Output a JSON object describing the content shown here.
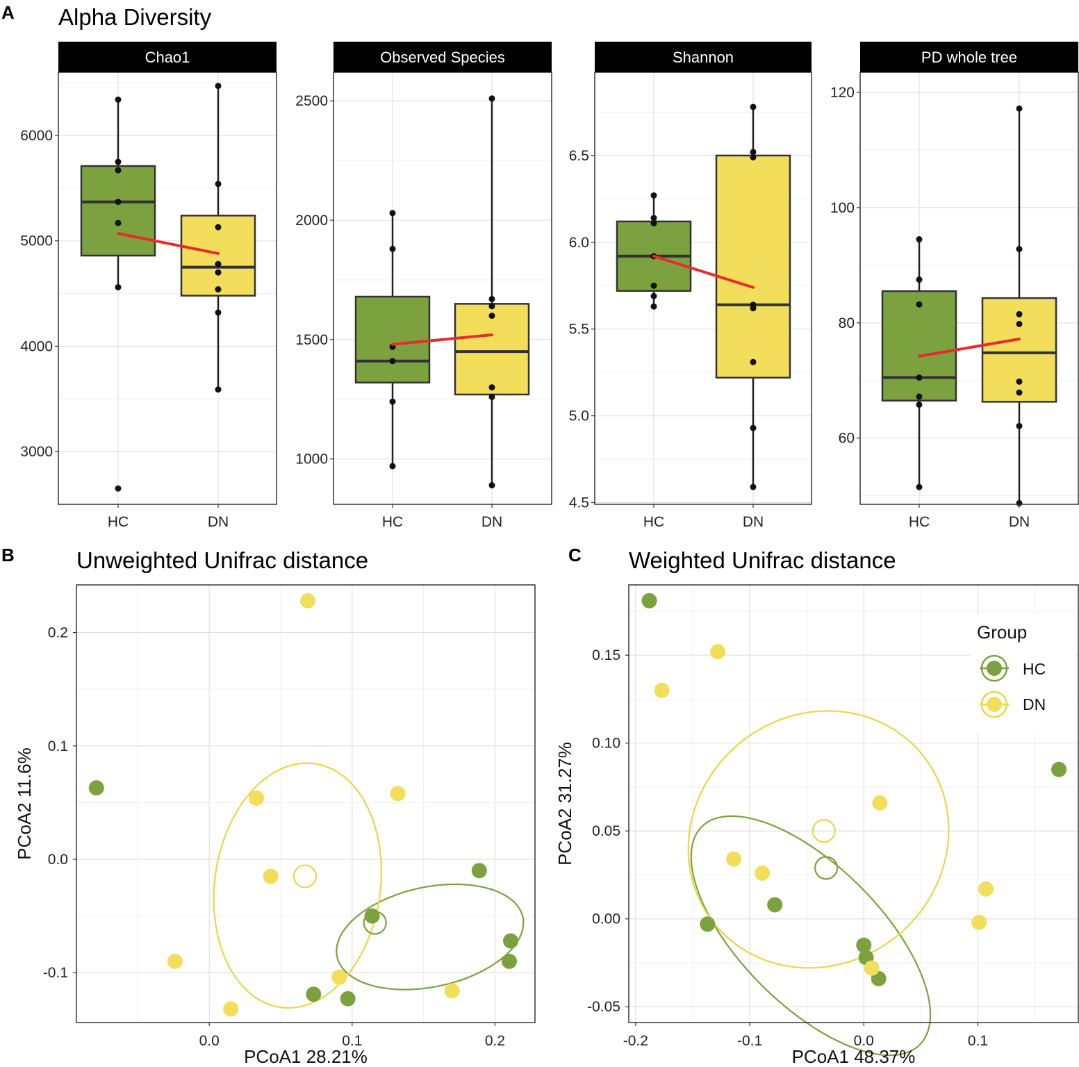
{
  "panel_labels": {
    "a": "A",
    "b": "B",
    "c": "C"
  },
  "colors": {
    "hc": "#7ba23f",
    "dn": "#f2de5a",
    "dn_line": "#ecd542",
    "mean_line": "#e82c2c",
    "strip_bg": "#000000",
    "grid": "#e1e1e1",
    "border": "#333333"
  },
  "chart_data": [
    {
      "type": "box",
      "title": "Alpha Diversity",
      "categories": [
        "HC",
        "DN"
      ],
      "facets": [
        {
          "name": "Chao1",
          "ylim": [
            2500,
            6600
          ],
          "yticks": [
            3000,
            4000,
            5000,
            6000
          ],
          "tick_labels": [
            "3000",
            "4000",
            "5000",
            "6000"
          ],
          "boxes": [
            {
              "group": "HC",
              "q1": 4860,
              "median": 5370,
              "q3": 5710,
              "whisker_low": 4560,
              "whisker_high": 6340,
              "mean": 5070
            },
            {
              "group": "DN",
              "q1": 4480,
              "median": 4750,
              "q3": 5240,
              "whisker_low": 3590,
              "whisker_high": 6470,
              "mean": 4880
            }
          ],
          "points": [
            {
              "group": "HC",
              "values": [
                6340,
                5750,
                5670,
                5370,
                5170,
                4560,
                2650
              ]
            },
            {
              "group": "DN",
              "values": [
                6470,
                5540,
                5130,
                4780,
                4700,
                4540,
                4320,
                3590
              ]
            }
          ]
        },
        {
          "name": "Observed Species",
          "ylim": [
            810,
            2620
          ],
          "yticks": [
            1000,
            1500,
            2000,
            2500
          ],
          "tick_labels": [
            "1000",
            "1500",
            "2000",
            "2500"
          ],
          "boxes": [
            {
              "group": "HC",
              "q1": 1320,
              "median": 1410,
              "q3": 1680,
              "whisker_low": 970,
              "whisker_high": 2030,
              "mean": 1480
            },
            {
              "group": "DN",
              "q1": 1270,
              "median": 1450,
              "q3": 1650,
              "whisker_low": 890,
              "whisker_high": 2510,
              "mean": 1520
            }
          ],
          "points": [
            {
              "group": "HC",
              "values": [
                2030,
                1880,
                1470,
                1410,
                1240,
                970
              ]
            },
            {
              "group": "DN",
              "values": [
                2510,
                1670,
                1640,
                1600,
                1300,
                1260,
                890
              ]
            }
          ]
        },
        {
          "name": "Shannon",
          "ylim": [
            4.49,
            6.98
          ],
          "yticks": [
            4.5,
            5.0,
            5.5,
            6.0,
            6.5
          ],
          "tick_labels": [
            "4.5",
            "5.0",
            "5.5",
            "6.0",
            "6.5"
          ],
          "boxes": [
            {
              "group": "HC",
              "q1": 5.72,
              "median": 5.92,
              "q3": 6.12,
              "whisker_low": 5.63,
              "whisker_high": 6.27,
              "mean": 5.92
            },
            {
              "group": "DN",
              "q1": 5.22,
              "median": 5.64,
              "q3": 6.5,
              "whisker_low": 4.59,
              "whisker_high": 6.78,
              "mean": 5.74
            }
          ],
          "points": [
            {
              "group": "HC",
              "values": [
                6.27,
                6.14,
                6.11,
                5.92,
                5.75,
                5.69,
                5.63
              ]
            },
            {
              "group": "DN",
              "values": [
                6.78,
                6.52,
                6.49,
                5.64,
                5.62,
                5.31,
                4.93,
                4.59
              ]
            }
          ]
        },
        {
          "name": "PD whole tree",
          "ylim": [
            48.5,
            123.5
          ],
          "yticks": [
            60,
            80,
            100,
            120
          ],
          "tick_labels": [
            "60",
            "80",
            "100",
            "120"
          ],
          "boxes": [
            {
              "group": "HC",
              "q1": 66.5,
              "median": 70.5,
              "q3": 85.5,
              "whisker_low": 51.5,
              "whisker_high": 94.5,
              "mean": 74.2
            },
            {
              "group": "DN",
              "q1": 66.3,
              "median": 74.8,
              "q3": 84.3,
              "whisker_low": 48.7,
              "whisker_high": 117.2,
              "mean": 77.2
            }
          ],
          "points": [
            {
              "group": "HC",
              "values": [
                94.5,
                87.5,
                83.2,
                70.5,
                67.2,
                65.8,
                51.5
              ]
            },
            {
              "group": "DN",
              "values": [
                117.2,
                92.8,
                81.5,
                79.8,
                69.8,
                67.9,
                62.1,
                48.7
              ]
            }
          ]
        }
      ]
    },
    {
      "type": "scatter",
      "title": "Unweighted Unifrac distance",
      "xlabel": "PCoA1 28.21%",
      "ylabel": "PCoA2 11.6%",
      "xlim": [
        -0.093,
        0.228
      ],
      "ylim": [
        -0.144,
        0.242
      ],
      "xticks": [
        0.0,
        0.1,
        0.2
      ],
      "xtick_labels": [
        "0.0",
        "0.1",
        "0.2"
      ],
      "yticks": [
        -0.1,
        0.0,
        0.1,
        0.2
      ],
      "ytick_labels": [
        "-0.1",
        "0.0",
        "0.1",
        "0.2"
      ],
      "series": [
        {
          "name": "HC",
          "color_key": "hc",
          "points": [
            [
              -0.079,
              0.063
            ],
            [
              0.189,
              -0.01
            ],
            [
              0.114,
              -0.05
            ],
            [
              0.211,
              -0.072
            ],
            [
              0.21,
              -0.09
            ],
            [
              0.073,
              -0.119
            ],
            [
              0.097,
              -0.123
            ]
          ],
          "centroid": [
            0.116,
            -0.056
          ],
          "ellipse": {
            "cx": 0.1545,
            "cy": -0.0685,
            "rx": 0.0665,
            "ry": 0.044,
            "angle_deg": 12
          }
        },
        {
          "name": "DN",
          "color_key": "dn",
          "points": [
            [
              0.069,
              0.228
            ],
            [
              0.033,
              0.054
            ],
            [
              0.132,
              0.058
            ],
            [
              0.043,
              -0.015
            ],
            [
              -0.024,
              -0.09
            ],
            [
              0.091,
              -0.104
            ],
            [
              0.17,
              -0.116
            ],
            [
              0.015,
              -0.132
            ]
          ],
          "centroid": [
            0.067,
            -0.015
          ],
          "ellipse": {
            "cx": 0.0618,
            "cy": -0.0231,
            "rx": 0.058,
            "ry": 0.1085,
            "angle_deg": -8
          }
        }
      ]
    },
    {
      "type": "scatter",
      "title": "Weighted Unifrac distance",
      "xlabel": "PCoA1 48.37%",
      "ylabel": "PCoA2 31.27%",
      "xlim": [
        -0.206,
        0.188
      ],
      "ylim": [
        -0.059,
        0.19
      ],
      "xticks": [
        -0.2,
        -0.1,
        0.0,
        0.1
      ],
      "xtick_labels": [
        "-0.2",
        "-0.1",
        "0.0",
        "0.1"
      ],
      "yticks": [
        -0.05,
        0.0,
        0.05,
        0.1,
        0.15
      ],
      "ytick_labels": [
        "-0.05",
        "0.00",
        "0.05",
        "0.10",
        "0.15"
      ],
      "legend": {
        "title": "Group",
        "position": "top-right"
      },
      "series": [
        {
          "name": "HC",
          "color_key": "hc",
          "points": [
            [
              -0.188,
              0.181
            ],
            [
              0.171,
              0.085
            ],
            [
              -0.078,
              0.008
            ],
            [
              -0.137,
              -0.003
            ],
            [
              0.0,
              -0.015
            ],
            [
              0.002,
              -0.022
            ],
            [
              0.013,
              -0.034
            ]
          ],
          "centroid": [
            -0.033,
            0.029
          ],
          "ellipse": {
            "cx": -0.0465,
            "cy": -0.0096,
            "rx": 0.0611,
            "ry": 0.0877,
            "angle_deg": 45
          }
        },
        {
          "name": "DN",
          "color_key": "dn",
          "points": [
            [
              -0.128,
              0.152
            ],
            [
              -0.177,
              0.13
            ],
            [
              0.014,
              0.066
            ],
            [
              -0.114,
              0.034
            ],
            [
              -0.089,
              0.026
            ],
            [
              0.107,
              0.017
            ],
            [
              0.101,
              -0.002
            ],
            [
              0.007,
              -0.028
            ]
          ],
          "centroid": [
            -0.035,
            0.05
          ],
          "ellipse": {
            "cx": -0.0397,
            "cy": 0.0452,
            "rx": 0.1175,
            "ry": 0.0708,
            "angle_deg": 40
          }
        }
      ]
    }
  ]
}
